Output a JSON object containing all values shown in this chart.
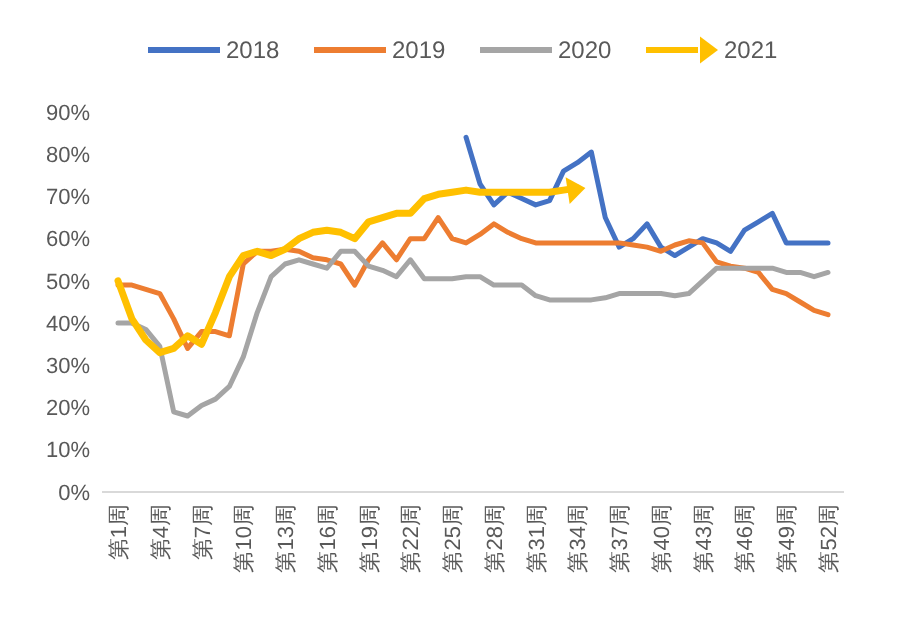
{
  "chart_data": {
    "type": "line",
    "categories": [
      "第1周",
      null,
      null,
      "第4周",
      null,
      null,
      "第7周",
      null,
      null,
      "第10周",
      null,
      null,
      "第13周",
      null,
      null,
      "第16周",
      null,
      null,
      "第19周",
      null,
      null,
      "第22周",
      null,
      null,
      "第25周",
      null,
      null,
      "第28周",
      null,
      null,
      "第31周",
      null,
      null,
      "第34周",
      null,
      null,
      "第37周",
      null,
      null,
      "第40周",
      null,
      null,
      "第43周",
      null,
      null,
      "第46周",
      null,
      null,
      "第49周",
      null,
      null,
      "第52周"
    ],
    "ylim": [
      0,
      90
    ],
    "yticks": [
      {
        "value": 0,
        "label": "0%"
      },
      {
        "value": 10,
        "label": "10%"
      },
      {
        "value": 20,
        "label": "20%"
      },
      {
        "value": 30,
        "label": "30%"
      },
      {
        "value": 40,
        "label": "40%"
      },
      {
        "value": 50,
        "label": "50%"
      },
      {
        "value": 60,
        "label": "60%"
      },
      {
        "value": 70,
        "label": "70%"
      },
      {
        "value": 80,
        "label": "80%"
      },
      {
        "value": 90,
        "label": "90%"
      }
    ],
    "grid": false,
    "legend": "top",
    "marker": "none",
    "line_style": "solid",
    "series": [
      {
        "name": "2018",
        "color": "#4472c4",
        "values": [
          null,
          null,
          null,
          null,
          null,
          null,
          null,
          null,
          null,
          null,
          null,
          null,
          null,
          null,
          null,
          null,
          null,
          null,
          null,
          null,
          null,
          null,
          null,
          null,
          null,
          84,
          73,
          68,
          71,
          69.5,
          68,
          69,
          76,
          78,
          80.5,
          65,
          58,
          60,
          63.5,
          58,
          56,
          58,
          60,
          59,
          57,
          62,
          64,
          66,
          59,
          59,
          59,
          59
        ]
      },
      {
        "name": "2019",
        "color": "#ed7d31",
        "values": [
          49,
          49,
          48,
          47,
          41,
          34,
          38,
          38,
          37,
          54,
          57,
          57,
          57.5,
          57,
          55.5,
          55,
          54,
          49,
          55,
          59,
          55,
          60,
          60,
          65,
          60,
          59,
          61,
          63.5,
          61.5,
          60,
          59,
          59,
          59,
          59,
          59,
          59,
          59,
          58.5,
          58,
          57,
          58.5,
          59.5,
          59,
          54.5,
          53.5,
          53,
          52,
          48,
          47,
          45,
          43,
          42
        ]
      },
      {
        "name": "2020",
        "color": "#a5a5a5",
        "values": [
          40,
          40,
          38.5,
          34.5,
          19,
          18,
          20.5,
          22,
          25,
          32,
          42.5,
          51,
          54,
          55,
          54,
          53,
          57,
          57,
          53.5,
          52.5,
          51,
          55,
          50.5,
          50.5,
          50.5,
          51,
          51,
          49,
          49,
          49,
          46.5,
          45.5,
          45.5,
          45.5,
          45.5,
          46,
          47,
          47,
          47,
          47,
          46.5,
          47,
          50,
          53,
          53,
          53,
          53,
          53,
          52,
          52,
          51,
          52
        ]
      },
      {
        "name": "2021",
        "color": "#ffc000",
        "values": [
          50,
          41,
          36,
          33,
          34,
          37,
          35,
          42.5,
          51,
          56,
          57,
          56,
          57.5,
          60,
          61.5,
          62,
          61.5,
          60,
          64,
          65,
          66,
          66,
          69.5,
          70.5,
          71,
          71.5,
          71,
          71,
          71,
          71,
          71,
          71,
          71.5,
          72,
          null,
          null,
          null,
          null,
          null,
          null,
          null,
          null,
          null,
          null,
          null,
          null,
          null,
          null,
          null,
          null,
          null,
          null
        ]
      }
    ]
  }
}
